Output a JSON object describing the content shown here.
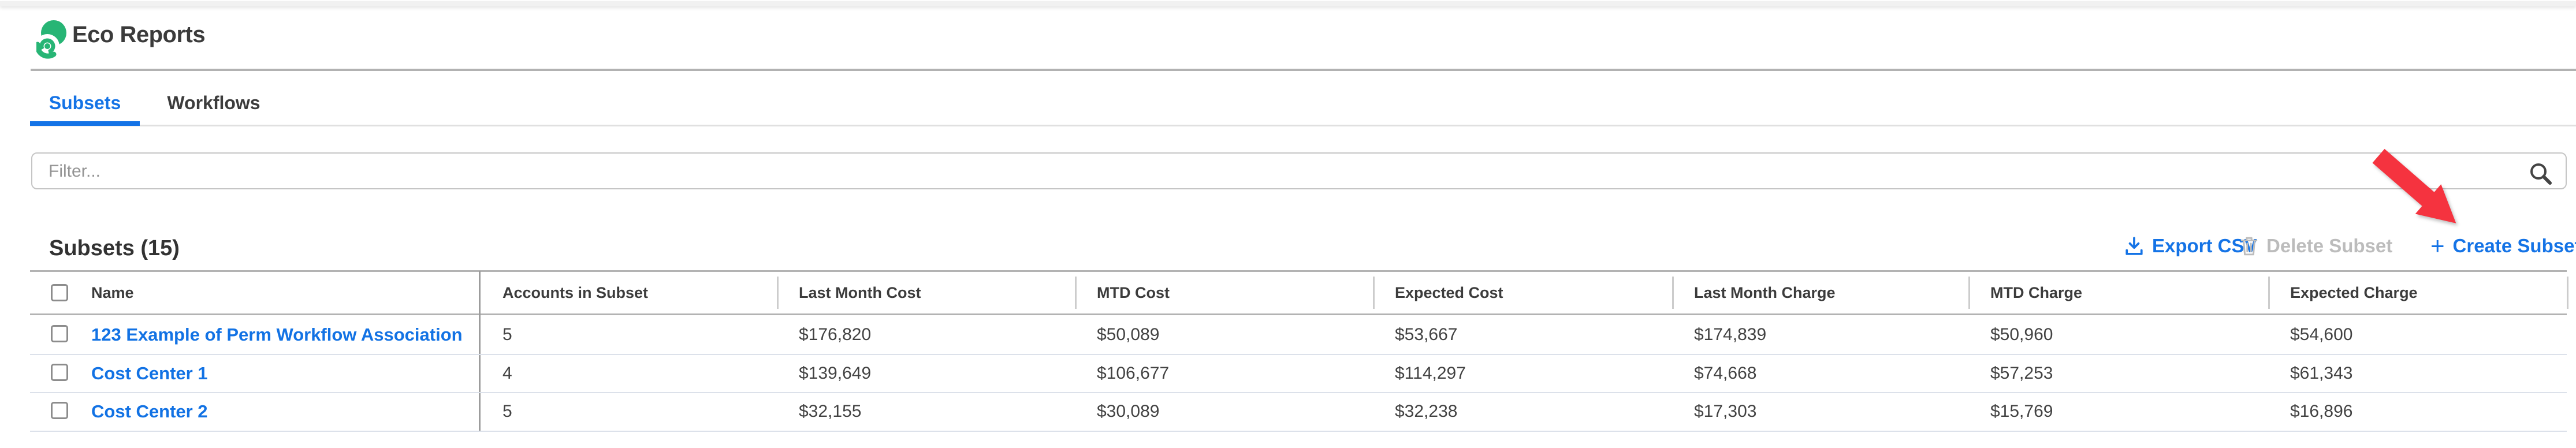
{
  "header": {
    "title": "Eco Reports",
    "logo": "eco-swirl-logo"
  },
  "tabs": [
    {
      "label": "Subsets",
      "active": true
    },
    {
      "label": "Workflows",
      "active": false
    }
  ],
  "filter": {
    "placeholder": "Filter...",
    "icon": "search-icon"
  },
  "section": {
    "title": "Subsets (15)"
  },
  "actions": {
    "export_csv": {
      "label": "Export CSV",
      "icon": "download-icon",
      "enabled": true
    },
    "delete_subset": {
      "label": "Delete Subset",
      "icon": "trash-icon",
      "enabled": false
    },
    "create_subset": {
      "label": "Create Subset",
      "icon": "plus-icon",
      "plus": "+",
      "enabled": true
    }
  },
  "annotation": {
    "type": "red-arrow",
    "points_to": "Create Subset"
  },
  "table": {
    "columns": [
      "Name",
      "Accounts in Subset",
      "Last Month Cost",
      "MTD Cost",
      "Expected Cost",
      "Last Month Charge",
      "MTD Charge",
      "Expected Charge"
    ],
    "rows": [
      {
        "name": "123 Example of Perm Workflow Association",
        "values": [
          "5",
          "$176,820",
          "$50,089",
          "$53,667",
          "$174,839",
          "$50,960",
          "$54,600"
        ]
      },
      {
        "name": "Cost Center 1",
        "values": [
          "4",
          "$139,649",
          "$106,677",
          "$114,297",
          "$74,668",
          "$57,253",
          "$61,343"
        ]
      },
      {
        "name": "Cost Center 2",
        "values": [
          "5",
          "$32,155",
          "$30,089",
          "$32,238",
          "$17,303",
          "$15,769",
          "$16,896"
        ]
      }
    ]
  },
  "colors": {
    "accent_blue": "#1473e6",
    "logo_green": "#27b575",
    "disabled_gray": "#bcbcbc",
    "arrow_red": "#f5333f",
    "row_separator": "#dce1ea"
  }
}
